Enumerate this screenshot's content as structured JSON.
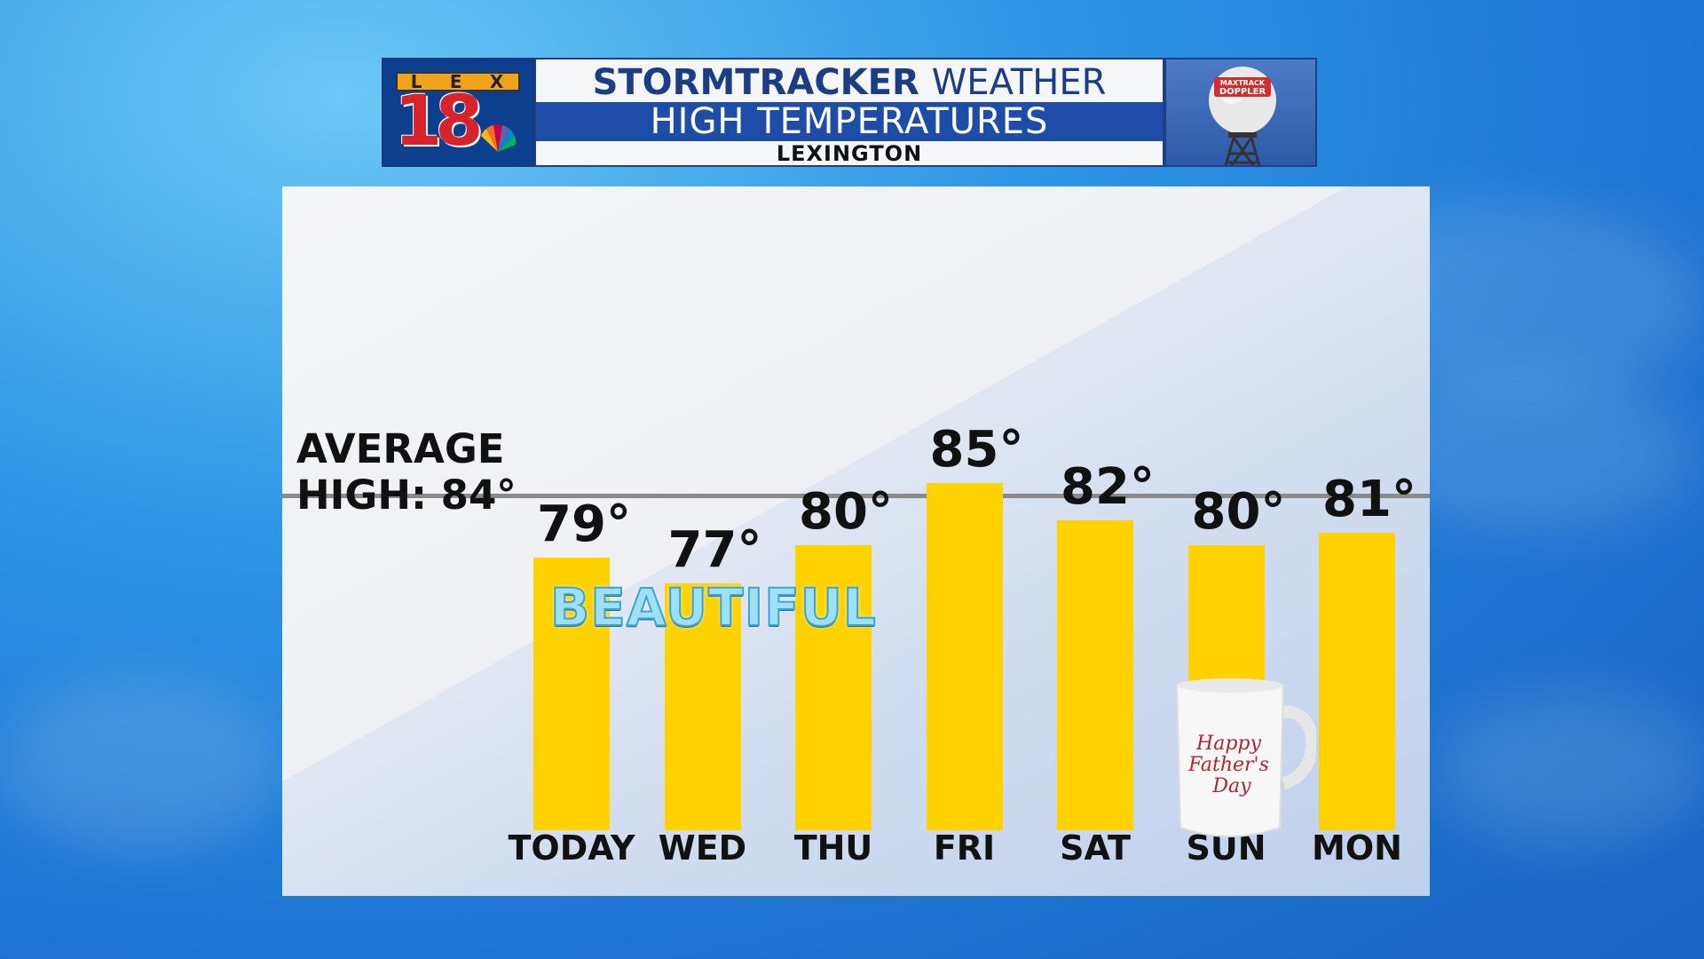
{
  "header": {
    "logo_letters": [
      "L",
      "E",
      "X"
    ],
    "logo_number": "18",
    "title_bold": "STORMTRACKER",
    "title_light": "WEATHER",
    "subtitle": "HIGH TEMPERATURES",
    "location": "LEXINGTON",
    "radar_label": "MAXTRACK DOPPLER"
  },
  "overlay_text": "BEAUTIFUL",
  "mug_text": "Happy Father's Day",
  "average": {
    "label_line1": "AVERAGE",
    "label_line2": "HIGH: 84°",
    "value": 84
  },
  "colors": {
    "bar": "#ffd200",
    "avg_line": "#8a8a8a",
    "header_blue": "#1e4da8"
  },
  "chart_data": {
    "type": "bar",
    "title": "HIGH TEMPERATURES",
    "categories": [
      "TODAY",
      "WED",
      "THU",
      "FRI",
      "SAT",
      "SUN",
      "MON"
    ],
    "values": [
      79,
      77,
      80,
      85,
      82,
      80,
      81
    ],
    "value_labels": [
      "79°",
      "77°",
      "80°",
      "85°",
      "82°",
      "80°",
      "81°"
    ],
    "reference_line": 84,
    "ylim": [
      58,
      88
    ],
    "grid": false
  }
}
